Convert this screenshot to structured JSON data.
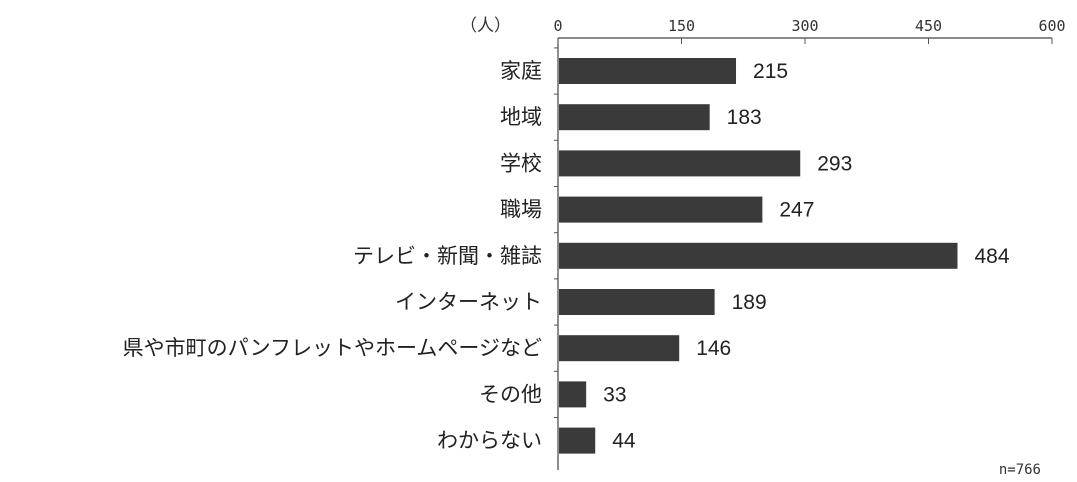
{
  "chart_data": {
    "type": "bar",
    "orientation": "horizontal",
    "unit_label": "（人）",
    "categories": [
      "家庭",
      "地域",
      "学校",
      "職場",
      "テレビ・新聞・雑誌",
      "インターネット",
      "県や市町のパンフレットやホームページなど",
      "その他",
      "わからない"
    ],
    "values": [
      215,
      183,
      293,
      247,
      484,
      189,
      146,
      33,
      44
    ],
    "value_labels": [
      "215",
      "183",
      "293",
      "247",
      "484",
      "189",
      "146",
      "33",
      "44"
    ],
    "xlim": [
      0,
      600
    ],
    "ticks": [
      0,
      150,
      300,
      450,
      600
    ],
    "tick_labels": [
      "0",
      "150",
      "300",
      "450",
      "600"
    ],
    "axis_position": "top",
    "grid": false,
    "note": "n=766",
    "bar_color": "#3a3a3a"
  }
}
